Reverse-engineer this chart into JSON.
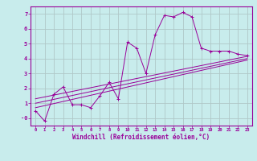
{
  "xlabel": "Windchill (Refroidissement éolien,°C)",
  "background_color": "#c8ecec",
  "line_color": "#990099",
  "grid_color": "#b0c8c8",
  "xlim": [
    -0.5,
    23.5
  ],
  "ylim": [
    -0.5,
    7.5
  ],
  "xticks": [
    0,
    1,
    2,
    3,
    4,
    5,
    6,
    7,
    8,
    9,
    10,
    11,
    12,
    13,
    14,
    15,
    16,
    17,
    18,
    19,
    20,
    21,
    22,
    23
  ],
  "yticks": [
    0,
    1,
    2,
    3,
    4,
    5,
    6,
    7
  ],
  "ytick_labels": [
    "-0",
    "1",
    "2",
    "3",
    "4",
    "5",
    "6",
    "7"
  ],
  "data_line": {
    "x": [
      0,
      1,
      2,
      3,
      4,
      5,
      6,
      7,
      8,
      9,
      10,
      11,
      12,
      13,
      14,
      15,
      16,
      17,
      18,
      19,
      20,
      21,
      22,
      23
    ],
    "y": [
      0.5,
      -0.2,
      1.6,
      2.1,
      0.9,
      0.9,
      0.7,
      1.5,
      2.4,
      1.3,
      5.1,
      4.7,
      3.0,
      5.6,
      6.9,
      6.8,
      7.1,
      6.8,
      4.7,
      4.5,
      4.5,
      4.5,
      4.3,
      4.2
    ]
  },
  "reg_lines": [
    {
      "x": [
        0,
        23
      ],
      "y": [
        1.0,
        4.0
      ]
    },
    {
      "x": [
        0,
        23
      ],
      "y": [
        1.3,
        4.15
      ]
    },
    {
      "x": [
        0,
        23
      ],
      "y": [
        0.7,
        3.9
      ]
    }
  ]
}
